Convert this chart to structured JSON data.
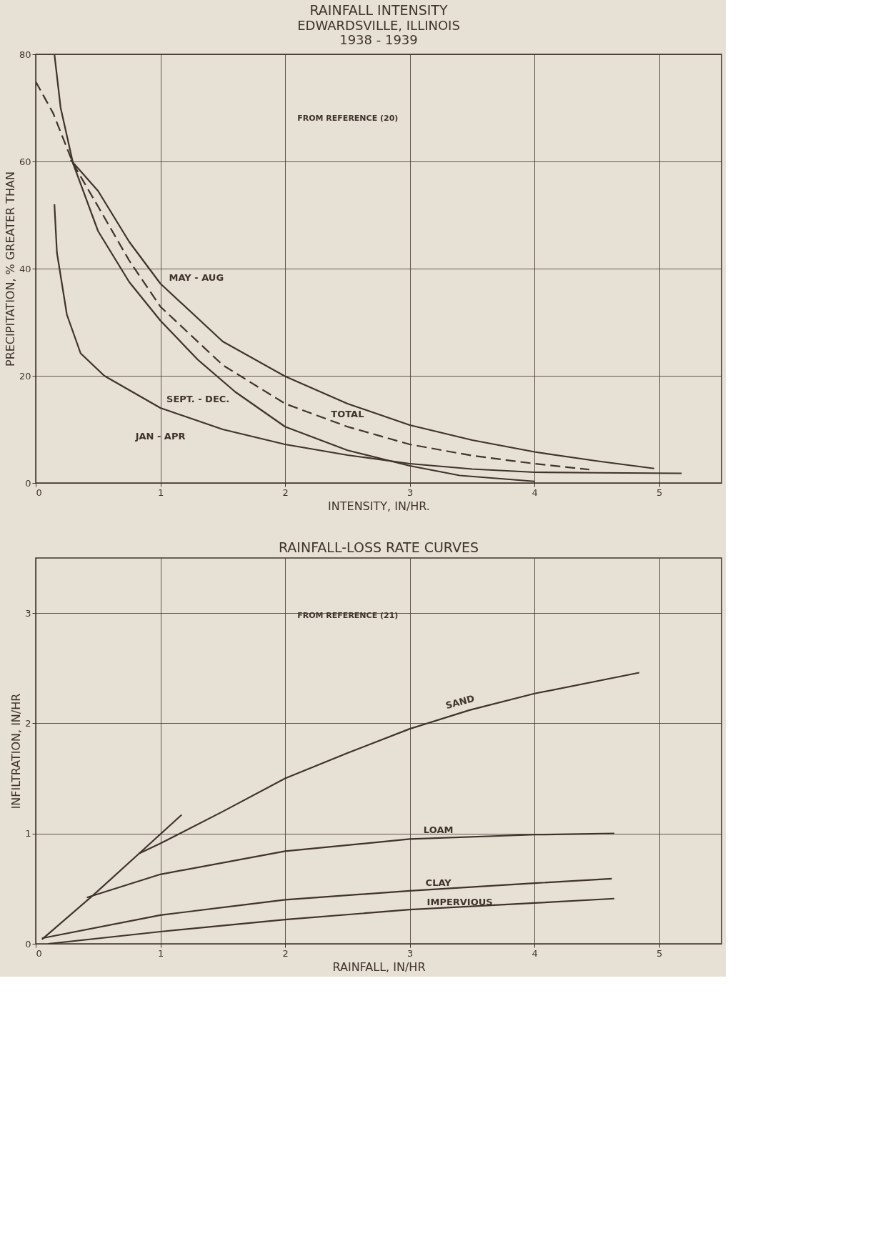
{
  "chart_data": [
    {
      "type": "line",
      "title": "RAINFALL INTENSITY",
      "subtitle": "EDWARDSVILLE, ILLINOIS\n1938 - 1939",
      "xlabel": "INTENSITY, IN/HR.",
      "ylabel": "PRECIPITATION, % GREATER THAN",
      "annotations": [
        "FROM REFERENCE (20)"
      ],
      "xlim": [
        0,
        5.5
      ],
      "xticks": [
        0,
        1,
        2,
        3,
        4,
        5
      ],
      "ylim": [
        0,
        80
      ],
      "yticks": [
        0,
        20,
        40,
        60,
        80
      ],
      "grid": true,
      "legend": false,
      "marker": "none",
      "series": [
        {
          "name": "JAN - APR",
          "color": "#3f332b",
          "line_style": "solid",
          "x": [
            0.15,
            0.17,
            0.25,
            0.36,
            0.55,
            1,
            1.5,
            2,
            2.5,
            3,
            3.5,
            4,
            4.5,
            5.18
          ],
          "values": [
            52,
            43,
            31.4,
            24.2,
            20,
            14,
            10,
            7.2,
            5.2,
            3.6,
            2.6,
            2,
            1.9,
            1.8
          ]
        },
        {
          "name": "MAY - AUG",
          "color": "#3f332b",
          "line_style": "solid",
          "x": [
            0.28,
            0.5,
            0.75,
            1,
            1.5,
            2,
            2.5,
            3,
            3.5,
            4,
            4.5,
            4.96
          ],
          "values": [
            60.3,
            54.5,
            45,
            37.2,
            26.4,
            19.9,
            14.8,
            10.8,
            8,
            5.8,
            4.1,
            2.7
          ]
        },
        {
          "name": "TOTAL",
          "color": "#3f332b",
          "line_style": "dashed",
          "x": [
            0,
            0.14,
            0.3,
            0.5,
            0.75,
            1,
            1.5,
            2,
            2.5,
            3,
            3.5,
            4,
            4.44
          ],
          "values": [
            74.9,
            69,
            59.6,
            51.6,
            41.5,
            32.9,
            22,
            14.8,
            10.5,
            7.2,
            5.1,
            3.6,
            2.5
          ]
        },
        {
          "name": "SEPT. - DEC.",
          "color": "#3f332b",
          "line_style": "solid",
          "x": [
            0.15,
            0.2,
            0.3,
            0.5,
            0.75,
            1,
            1.3,
            1.6,
            2,
            2.5,
            3,
            3.4,
            4
          ],
          "values": [
            80,
            70,
            59.6,
            47,
            37.5,
            30.3,
            23,
            17,
            10.5,
            6.1,
            3.2,
            1.4,
            0.3
          ]
        }
      ]
    },
    {
      "type": "line",
      "title": "RAINFALL-LOSS RATE CURVES",
      "xlabel": "RAINFALL, IN/HR",
      "ylabel": "INFILTRATION, IN/HR",
      "annotations": [
        "FROM REFERENCE (21)"
      ],
      "xlim": [
        0,
        5.5
      ],
      "xticks": [
        0,
        1,
        2,
        3,
        4,
        5
      ],
      "ylim": [
        0,
        3.5
      ],
      "yticks": [
        0,
        1,
        2,
        3
      ],
      "grid": true,
      "legend": false,
      "marker": "none",
      "series": [
        {
          "name": "SAND",
          "color": "#3f332b",
          "line_style": "solid",
          "x": [
            0.05,
            0.46,
            0.83,
            1,
            1.5,
            2,
            2.5,
            3,
            3.48,
            4,
            4.84
          ],
          "values": [
            0.04,
            0.44,
            0.82,
            0.91,
            1.2,
            1.5,
            1.73,
            1.95,
            2.12,
            2.27,
            2.46
          ]
        },
        {
          "color": "#3f332b",
          "line_style": "solid",
          "x": [
            0.83,
            1.17
          ],
          "values": [
            0.82,
            1.17
          ]
        },
        {
          "name": "LOAM",
          "color": "#3f332b",
          "line_style": "solid",
          "x": [
            0.41,
            1,
            2,
            3,
            4,
            4.64
          ],
          "values": [
            0.42,
            0.63,
            0.84,
            0.95,
            0.99,
            1.0
          ]
        },
        {
          "name": "CLAY",
          "color": "#3f332b",
          "line_style": "solid",
          "x": [
            0.05,
            1,
            2,
            3,
            4,
            4.62
          ],
          "values": [
            0.05,
            0.26,
            0.4,
            0.48,
            0.55,
            0.59
          ]
        },
        {
          "name": "IMPERVIOUS",
          "color": "#3f332b",
          "line_style": "solid",
          "x": [
            0.1,
            1,
            2,
            3,
            4,
            4.64
          ],
          "values": [
            0,
            0.11,
            0.22,
            0.31,
            0.37,
            0.41
          ]
        }
      ]
    }
  ]
}
